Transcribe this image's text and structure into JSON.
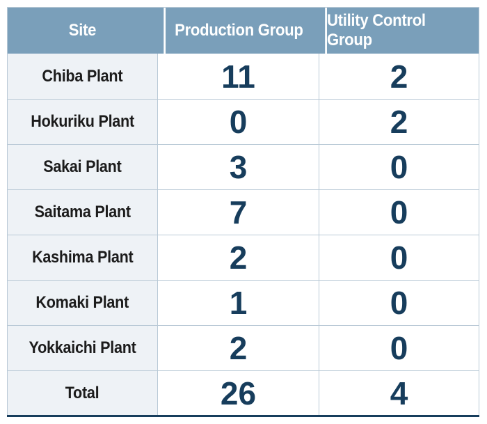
{
  "chart_data": {
    "type": "table",
    "columns": [
      "Site",
      "Production Group",
      "Utility Control Group"
    ],
    "rows": [
      {
        "site": "Chiba Plant",
        "production": "11",
        "utility": "2"
      },
      {
        "site": "Hokuriku Plant",
        "production": "0",
        "utility": "2"
      },
      {
        "site": "Sakai Plant",
        "production": "3",
        "utility": "0"
      },
      {
        "site": "Saitama Plant",
        "production": "7",
        "utility": "0"
      },
      {
        "site": "Kashima Plant",
        "production": "2",
        "utility": "0"
      },
      {
        "site": "Komaki Plant",
        "production": "1",
        "utility": "0"
      },
      {
        "site": "Yokkaichi Plant",
        "production": "2",
        "utility": "0"
      },
      {
        "site": "Total",
        "production": "26",
        "utility": "4"
      }
    ],
    "colors": {
      "header_bg": "#7a9fba",
      "header_text": "#ffffff",
      "site_bg": "#eef2f6",
      "number_text": "#173d5c"
    }
  }
}
